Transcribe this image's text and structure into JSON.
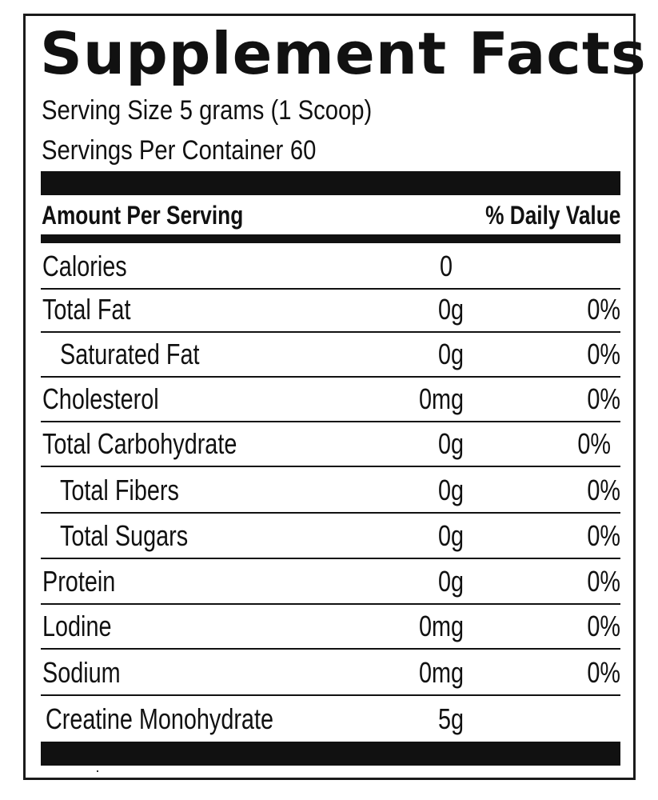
{
  "title": "Supplement Facts",
  "serving_size": {
    "label": "Serving Size",
    "value": "5 grams (1 Scoop)"
  },
  "servings_per_container": {
    "label": "Servings Per Container",
    "value": "60"
  },
  "header": {
    "amount_label": "Amount Per Serving",
    "dv_label": "% Daily Value"
  },
  "rows": [
    {
      "name": "Calories",
      "amount": "0",
      "dv": ""
    },
    {
      "name": "Total Fat",
      "amount": "0g",
      "dv": "0%"
    },
    {
      "name": "Saturated Fat",
      "amount": "0g",
      "dv": "0%"
    },
    {
      "name": "Cholesterol",
      "amount": "0mg",
      "dv": "0%"
    },
    {
      "name": "Total Carbohydrate",
      "amount": "0g",
      "dv": "0%"
    },
    {
      "name": "Total Fibers",
      "amount": "0g",
      "dv": "0%"
    },
    {
      "name": "Total Sugars",
      "amount": "0g",
      "dv": "0%"
    },
    {
      "name": "Protein",
      "amount": "0g",
      "dv": "0%"
    },
    {
      "name": "Lodine",
      "amount": "0mg",
      "dv": "0%"
    },
    {
      "name": "Sodium",
      "amount": "0mg",
      "dv": "0%"
    },
    {
      "name": "Creatine Monohydrate",
      "amount": "5g",
      "dv": ""
    }
  ]
}
